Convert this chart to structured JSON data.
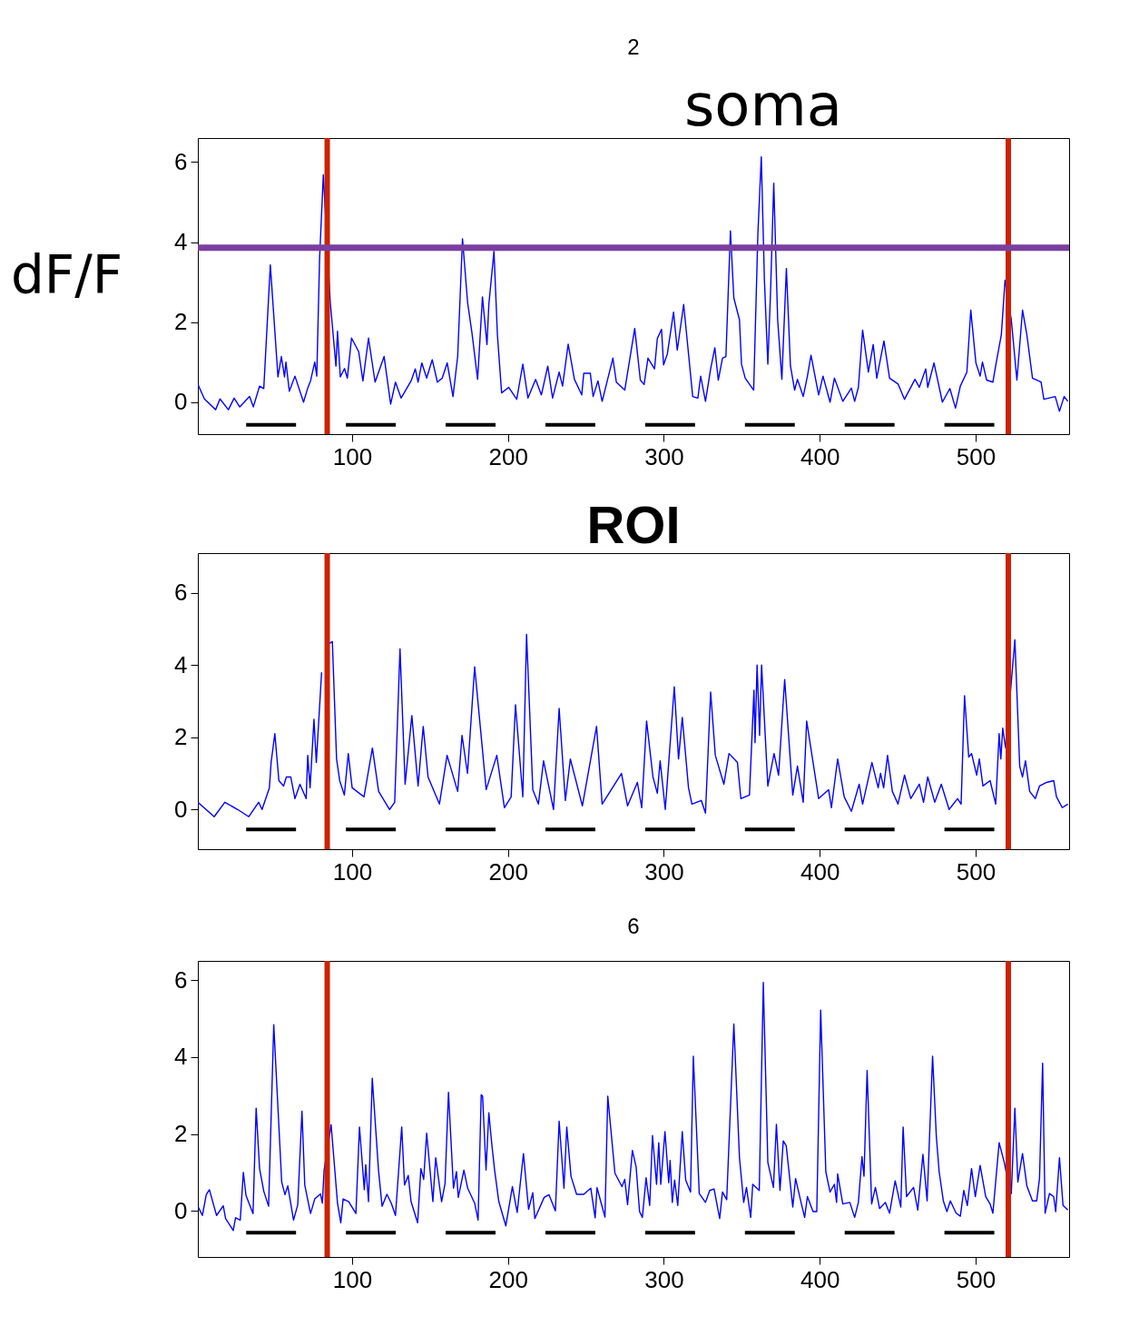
{
  "chart_data": [
    {
      "type": "line",
      "title": "2",
      "ylabel": "dF/F",
      "annotations": [
        "soma"
      ],
      "xlim": [
        1,
        560
      ],
      "xticks": [
        100,
        200,
        300,
        400,
        500
      ],
      "ylim": [
        -0.8,
        6.6
      ],
      "yticks": [
        0,
        2,
        4,
        6
      ],
      "series": [
        {
          "color": "#0000ff",
          "x": [
            1,
            5.2,
            12.4,
            15.2,
            20.6,
            24.3,
            27.9,
            34.2,
            36.6,
            40.6,
            43.3,
            47.5,
            52.4,
            54.6,
            56.6,
            57.5,
            59.7,
            63.3,
            68.8,
            71.5,
            73.3,
            76,
            77.3,
            79.1,
            81.5,
            86,
            89.6,
            90.6,
            92.4,
            95.1,
            96.9,
            99.6,
            104.2,
            106.9,
            110.5,
            114.7,
            120.5,
            124.7,
            127.8,
            131.4,
            137.8,
            140.5,
            142.3,
            144.7,
            147.8,
            151.4,
            154.7,
            157.8,
            161,
            164.7,
            167.7,
            170.8,
            174.1,
            176.8,
            180.5,
            183.6,
            186.5,
            187.7,
            191,
            193.2,
            195.9,
            200.4,
            205.6,
            209.5,
            212.8,
            217.7,
            221.4,
            225.5,
            228.6,
            232.8,
            235,
            238.6,
            242.6,
            247.3,
            248.6,
            252.8,
            254.6,
            257.7,
            260.4,
            267.3,
            269.5,
            274.9,
            281.3,
            284.9,
            287.3,
            289.8,
            294,
            295.8,
            298.5,
            299.8,
            302.2,
            306.2,
            308.6,
            312.7,
            318.5,
            321.8,
            323.6,
            326.7,
            330,
            332.7,
            334.9,
            337.6,
            339.8,
            342.7,
            344.9,
            348.5,
            349.8,
            352.2,
            357.6,
            360.3,
            362.5,
            364.5,
            366.7,
            368.5,
            370.5,
            373,
            375.7,
            378.6,
            381.2,
            383.9,
            385.7,
            389.4,
            392.1,
            394.4,
            399.3,
            402.1,
            406.6,
            409.4,
            414.8,
            420.3,
            422.4,
            424.8,
            427.5,
            431.2,
            434.3,
            436.6,
            441.2,
            444.8,
            450.3,
            454.4,
            461.1,
            463.9,
            468,
            469.3,
            473.3,
            478.7,
            483.5,
            487.1,
            490.2,
            494.4,
            496.9,
            500.2,
            502.9,
            504.4,
            507.1,
            511.1,
            513.2,
            516.5,
            518.9,
            522.9,
            526.5,
            530.1,
            532.9,
            536.5,
            542,
            543.8,
            551.1,
            553.8,
            556.8,
            559.2
          ],
          "values": [
            0.45,
            0.08,
            -0.19,
            0.08,
            -0.19,
            0.1,
            -0.12,
            0.14,
            -0.12,
            0.4,
            0.34,
            3.43,
            0.63,
            1.14,
            0.63,
            1.0,
            0.27,
            0.65,
            0.0,
            0.35,
            0.53,
            1.0,
            0.65,
            3.58,
            5.68,
            2.48,
            0.9,
            1.77,
            0.63,
            0.84,
            0.6,
            1.6,
            1.26,
            0.53,
            1.6,
            0.5,
            1.14,
            -0.05,
            0.5,
            0.1,
            0.53,
            0.83,
            0.5,
            0.98,
            0.6,
            1.06,
            0.5,
            0.6,
            0.98,
            0.14,
            1.14,
            4.08,
            2.48,
            1.75,
            0.57,
            2.63,
            1.44,
            2.44,
            3.77,
            1.68,
            0.23,
            0.37,
            0.07,
            0.95,
            0.1,
            0.57,
            0.18,
            0.9,
            0.1,
            0.75,
            0.4,
            1.45,
            0.57,
            0.18,
            0.72,
            0.72,
            0.14,
            0.53,
            0.02,
            1.1,
            0.5,
            0.3,
            1.84,
            0.55,
            0.44,
            1.1,
            0.83,
            1.59,
            1.82,
            0.93,
            1.2,
            2.25,
            1.3,
            2.44,
            0.14,
            0.1,
            0.65,
            0.02,
            0.83,
            1.36,
            0.55,
            1.1,
            1.14,
            4.28,
            2.6,
            2.06,
            0.95,
            0.6,
            0.3,
            4.19,
            6.13,
            3.06,
            0.95,
            2.82,
            5.47,
            2.06,
            0.57,
            3.34,
            0.91,
            0.3,
            0.57,
            0.14,
            0.65,
            1.17,
            0.18,
            0.65,
            0.0,
            0.6,
            0.02,
            0.35,
            0.02,
            0.37,
            1.8,
            0.75,
            1.44,
            0.6,
            1.53,
            0.6,
            0.45,
            0.07,
            0.57,
            0.37,
            0.83,
            0.37,
            0.98,
            0.0,
            0.34,
            -0.15,
            0.4,
            0.75,
            2.3,
            0.98,
            0.65,
            1.0,
            0.55,
            0.5,
            0.98,
            1.68,
            3.05,
            2.06,
            0.55,
            2.3,
            1.68,
            0.6,
            0.5,
            0.07,
            0.14,
            -0.23,
            0.14,
            0.02
          ]
        },
        {
          "color": "#000000",
          "x": [
            32,
            64,
            80,
            96,
            128,
            144,
            160,
            192,
            208,
            224,
            256,
            272,
            288,
            320,
            336,
            352,
            384,
            400,
            416,
            448,
            464,
            480,
            512
          ],
          "values": [
            -0.57,
            -0.57,
            null,
            -0.57,
            -0.57,
            null,
            -0.57,
            -0.57,
            null,
            -0.57,
            -0.57,
            null,
            -0.57,
            -0.57,
            null,
            -0.57,
            -0.57,
            null,
            -0.57,
            -0.57,
            null,
            -0.57,
            -0.57
          ]
        }
      ],
      "ref_lines": [
        {
          "axis": "x",
          "value": 84,
          "color": "#cc2200"
        },
        {
          "axis": "x",
          "value": 521,
          "color": "#cc2200"
        },
        {
          "axis": "y",
          "value": 3.86,
          "color": "#7a3fa0"
        }
      ]
    },
    {
      "type": "line",
      "title": "ROI",
      "xlim": [
        1,
        560
      ],
      "xticks": [
        100,
        200,
        300,
        400,
        500
      ],
      "ylim": [
        -1.1,
        7.1
      ],
      "yticks": [
        0,
        2,
        4,
        6
      ],
      "series": [
        {
          "color": "#0000ff",
          "x": [
            1,
            11.5,
            18.3,
            26.5,
            33.7,
            40,
            42.2,
            46.9,
            48,
            50.4,
            53,
            56,
            57.8,
            60.6,
            63.3,
            66.5,
            70.5,
            71.5,
            73,
            75.5,
            77,
            80.4,
            82.9,
            85.5,
            87.3,
            90,
            92,
            95,
            97.5,
            100,
            107.6,
            113,
            117,
            124,
            127.3,
            130.7,
            134,
            138.3,
            142.3,
            145.6,
            148.7,
            156,
            160.9,
            167.7,
            170.5,
            174,
            178.6,
            186,
            192.8,
            197.7,
            202,
            204.8,
            209.5,
            211.9,
            215.9,
            219.5,
            222.8,
            229.2,
            232.8,
            236.8,
            240,
            247.7,
            256.8,
            260.4,
            272.8,
            276.7,
            283,
            285.8,
            288.9,
            293,
            295.8,
            297.6,
            300.9,
            306.7,
            309.4,
            311.8,
            315.8,
            318,
            324,
            326.7,
            330,
            333,
            338.5,
            341.8,
            347.2,
            349.4,
            354.9,
            357.8,
            358.5,
            359.8,
            361.4,
            362.7,
            366.7,
            370.7,
            373.6,
            377.5,
            382.7,
            385.7,
            389.4,
            391.6,
            394.3,
            399.3,
            405.7,
            407.5,
            411.5,
            415.7,
            420.3,
            425.3,
            427.5,
            433.5,
            437.5,
            439,
            441,
            443.5,
            446.6,
            450.2,
            454.4,
            458.4,
            463.9,
            466.6,
            469.3,
            473.8,
            478,
            483,
            488.4,
            490.7,
            492.9,
            495.6,
            497.4,
            500.7,
            502.4,
            504.7,
            509.3,
            512.9,
            515.1,
            516.2,
            517.4,
            519.3,
            525.2,
            528.3,
            530.1,
            532,
            534.7,
            538.3,
            541,
            545.6,
            550.1,
            551.9,
            555.6,
            559.2
          ],
          "values": [
            0.2,
            -0.2,
            0.2,
            0,
            -0.2,
            0.2,
            0,
            0.6,
            1.3,
            2.1,
            0.8,
            0.65,
            0.9,
            0.9,
            0.3,
            0.7,
            0.3,
            1.5,
            0.6,
            2.5,
            1.3,
            3.8,
            null,
            4.6,
            4.65,
            1.4,
            0.8,
            0.4,
            1.55,
            0.6,
            0.35,
            1.7,
            0.5,
            0,
            0.2,
            4.45,
            0.7,
            2.6,
            0.65,
            2.3,
            0.9,
            0.15,
            1.5,
            0.5,
            2.05,
            1.0,
            3.95,
            0.55,
            1.5,
            0.05,
            0.35,
            2.9,
            0.35,
            4.85,
            0.55,
            0.15,
            1.35,
            0,
            2.8,
            0.25,
            1.4,
            0.1,
            2.3,
            0.15,
            1.0,
            0.1,
            0.75,
            0.05,
            2.45,
            0.9,
            0.45,
            1.35,
            0,
            3.4,
            1.4,
            2.55,
            0.6,
            0.15,
            0.25,
            -0.1,
            3.25,
            1.5,
            0.7,
            1.55,
            1.3,
            0.3,
            0.4,
            3.3,
            1.85,
            4.0,
            2.05,
            4.0,
            0.65,
            1.55,
            0.95,
            3.6,
            0.4,
            1.2,
            0.2,
            2.45,
            1.7,
            0.3,
            0.55,
            0.05,
            1.4,
            0.35,
            -0.05,
            0.7,
            0.15,
            1.3,
            0.6,
            1.0,
            0.6,
            1.5,
            0.5,
            0.15,
            0.95,
            0.3,
            0.7,
            0.2,
            0.9,
            0.2,
            0.7,
            0,
            0.3,
            0.15,
            3.15,
            1.45,
            1.55,
            0.95,
            1.4,
            0.65,
            0.8,
            0.15,
            2.1,
            1.4,
            2.25,
            1.7,
            4.7,
            1.2,
            0.9,
            1.35,
            0.5,
            0.3,
            0.65,
            0.75,
            0.8,
            0.35,
            0.05,
            0.15
          ]
        },
        {
          "color": "#000000",
          "x": [
            32,
            64,
            80,
            96,
            128,
            144,
            160,
            192,
            208,
            224,
            256,
            272,
            288,
            320,
            336,
            352,
            384,
            400,
            416,
            448,
            464,
            480,
            512
          ],
          "values": [
            -0.55,
            -0.55,
            null,
            -0.55,
            -0.55,
            null,
            -0.55,
            -0.55,
            null,
            -0.55,
            -0.55,
            null,
            -0.55,
            -0.55,
            null,
            -0.55,
            -0.55,
            null,
            -0.55,
            -0.55,
            null,
            -0.55,
            -0.55
          ]
        }
      ],
      "ref_lines": [
        {
          "axis": "x",
          "value": 84,
          "color": "#cc2200"
        },
        {
          "axis": "x",
          "value": 521,
          "color": "#cc2200"
        }
      ]
    },
    {
      "type": "line",
      "title": "6",
      "xlim": [
        1,
        560
      ],
      "xticks": [
        100,
        200,
        300,
        400,
        500
      ],
      "ylim": [
        -1.2,
        6.5
      ],
      "yticks": [
        0,
        2,
        4,
        6
      ],
      "series": [
        {
          "color": "#0000ff",
          "x": [
            1,
            3.9,
            6.4,
            8.4,
            13,
            17.3,
            18.8,
            23.7,
            25.2,
            28.2,
            30.2,
            31.9,
            36.4,
            38.4,
            40.6,
            43.3,
            46.4,
            49.7,
            54.8,
            56.9,
            58.7,
            62.4,
            65.1,
            67.8,
            69.6,
            73.3,
            76,
            79.7,
            80.9,
            82,
            86.5,
            90.6,
            92.7,
            94.2,
            97.8,
            102.4,
            104.7,
            107.8,
            108.7,
            110.5,
            112.9,
            116.9,
            119.2,
            122.3,
            125.1,
            127.8,
            131.8,
            133.6,
            136,
            137.8,
            142,
            144.1,
            145.9,
            147.8,
            151.8,
            153.6,
            157.4,
            159.6,
            161.8,
            165,
            166.9,
            168.1,
            171.7,
            174.1,
            178.6,
            180.8,
            182.8,
            183.7,
            185.9,
            187.7,
            189.5,
            191.4,
            194.1,
            198.6,
            202.8,
            205.9,
            209.9,
            213.2,
            215.9,
            217.2,
            223.2,
            226.3,
            230.4,
            232.8,
            235.9,
            237.7,
            240.4,
            244,
            248.6,
            253.1,
            255.9,
            257.1,
            262.2,
            264,
            268.6,
            273.1,
            274.9,
            276.7,
            279.8,
            282.2,
            284.4,
            286.2,
            288.6,
            290.9,
            292.7,
            295.3,
            296.7,
            298,
            300.7,
            303.1,
            304,
            305.4,
            306.9,
            308.9,
            311.8,
            314,
            317.1,
            318.9,
            322.7,
            326.7,
            329.4,
            332.2,
            335.8,
            337.6,
            340.3,
            344.9,
            348.5,
            351.2,
            353,
            355.7,
            357,
            361.2,
            363.8,
            366.7,
            370.3,
            372.2,
            374.5,
            376.6,
            378.5,
            382.7,
            384.5,
            387.6,
            390.3,
            392.1,
            395.7,
            398.1,
            400.6,
            403.9,
            406.6,
            409.4,
            410.8,
            411.5,
            414.8,
            419.3,
            422.4,
            424.8,
            427.1,
            428.4,
            430.4,
            433.3,
            435.7,
            438.4,
            442.1,
            444.8,
            448.4,
            452,
            453.5,
            455.7,
            460.2,
            462.9,
            466.2,
            468.9,
            472.4,
            474.8,
            476.6,
            479.3,
            481.6,
            483.8,
            487.5,
            490.2,
            492.4,
            494.7,
            497.4,
            499.8,
            502.9,
            506.5,
            509.3,
            511.1,
            515.1,
            518.4,
            521.1,
            522.9,
            525.2,
            527.1,
            530.1,
            532.9,
            536.5,
            539.2,
            541,
            543,
            544.6,
            547.4,
            550.1,
            551.4,
            553.8,
            556.1,
            559.2
          ],
          "values": [
            0.12,
            -0.12,
            0.42,
            0.55,
            -0.12,
            0.13,
            -0.2,
            -0.51,
            -0.18,
            -0.24,
            1.0,
            0.4,
            -0.07,
            2.67,
            1.1,
            0.51,
            0.12,
            4.84,
            0.75,
            0.42,
            0.65,
            -0.24,
            0.16,
            2.59,
            0.67,
            -0.07,
            0.31,
            0.44,
            0.2,
            1.06,
            2.24,
            0.2,
            -0.31,
            0.31,
            0.24,
            -0.07,
            2.18,
            0.55,
            1.2,
            0.24,
            3.45,
            1.06,
            0.12,
            0.43,
            0.2,
            -0.12,
            2.18,
            0.67,
            0.92,
            0.24,
            -0.31,
            1.1,
            0.82,
            2.02,
            0.24,
            1.38,
            0.24,
            0.71,
            3.08,
            0.59,
            1.02,
            0.35,
            1.06,
            0.59,
            0.2,
            -0.24,
            3.02,
            2.98,
            1.06,
            2.55,
            1.77,
            1.06,
            0.24,
            -0.39,
            0.63,
            -0.04,
            1.49,
            0.04,
            0.47,
            -0.2,
            0.35,
            0.42,
            0.0,
            2.33,
            0.59,
            2.18,
            0.9,
            0.43,
            0.43,
            0.59,
            -0.18,
            0.6,
            -0.16,
            2.98,
            0.98,
            0.63,
            0.82,
            0.16,
            1.57,
            1.14,
            -0.02,
            -0.17,
            0.86,
            0.14,
            1.96,
            0.69,
            1.77,
            0.69,
            2.06,
            0.73,
            1.31,
            0.22,
            0.8,
            0.14,
            2.06,
            0.8,
            0.49,
            4.02,
            0.45,
            0.22,
            0.53,
            0.57,
            -0.2,
            0.49,
            0.29,
            4.86,
            1.38,
            0.22,
            0.61,
            -0.17,
            0.69,
            0.53,
            5.94,
            1.26,
            0.61,
            2.25,
            0.53,
            1.82,
            1.69,
            0.1,
            0.84,
            0.29,
            -0.17,
            0.37,
            -0.02,
            -0.02,
            5.22,
            1.02,
            0.49,
            0.69,
            0.22,
            0.96,
            0.18,
            0.22,
            -0.17,
            0.22,
            1.41,
            0.9,
            3.65,
            0.18,
            0.61,
            0.06,
            0.22,
            -0.06,
            0.78,
            0.1,
            2.18,
            0.37,
            0.61,
            0.02,
            1.47,
            0.26,
            4.02,
            1.94,
            1.02,
            0.26,
            -0.02,
            0.26,
            -0.06,
            -0.14,
            0.53,
            0.14,
            1.1,
            0.37,
            1.18,
            0.37,
            0.18,
            -0.06,
            1.77,
            1.26,
            0.69,
            0.45,
            2.67,
            0.75,
            1.49,
            0.65,
            0.26,
            0.26,
            0.84,
            3.84,
            -0.06,
            0.45,
            0.37,
            -0.02,
            1.38,
            0.14,
            0.02
          ]
        },
        {
          "color": "#000000",
          "x": [
            32,
            64,
            80,
            96,
            128,
            144,
            160,
            192,
            208,
            224,
            256,
            272,
            288,
            320,
            336,
            352,
            384,
            400,
            416,
            448,
            464,
            480,
            512
          ],
          "values": [
            -0.57,
            -0.57,
            null,
            -0.57,
            -0.57,
            null,
            -0.57,
            -0.57,
            null,
            -0.57,
            -0.57,
            null,
            -0.57,
            -0.57,
            null,
            -0.57,
            -0.57,
            null,
            -0.57,
            -0.57,
            null,
            -0.57,
            -0.57
          ]
        }
      ],
      "ref_lines": [
        {
          "axis": "x",
          "value": 84,
          "color": "#cc2200"
        },
        {
          "axis": "x",
          "value": 521,
          "color": "#cc2200"
        }
      ]
    }
  ]
}
